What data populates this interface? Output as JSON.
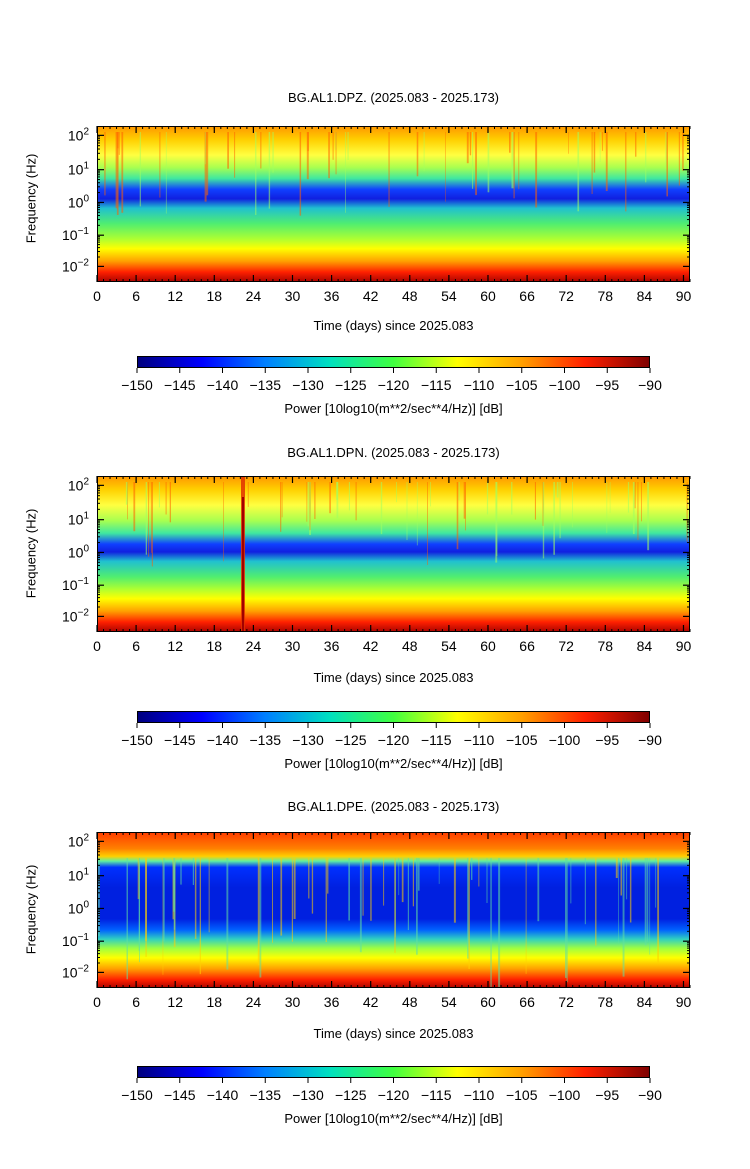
{
  "chart_data": [
    {
      "type": "heatmap",
      "title": "BG.AL1.DPZ. (2025.083 - 2025.173)",
      "xlabel": "Time (days) since 2025.083",
      "ylabel": "Frequency (Hz)",
      "x_ticks": [
        "0",
        "6",
        "12",
        "18",
        "24",
        "30",
        "36",
        "42",
        "48",
        "54",
        "60",
        "66",
        "72",
        "78",
        "84",
        "90"
      ],
      "y_ticks": [
        {
          "base": "10",
          "exp": "2"
        },
        {
          "base": "10",
          "exp": "1"
        },
        {
          "base": "10",
          "exp": "0"
        },
        {
          "base": "10",
          "exp": "−1"
        },
        {
          "base": "10",
          "exp": "−2"
        }
      ],
      "xlim": [
        0,
        91
      ],
      "y_scale": "log",
      "colorbar_label": "Power [10log10(m**2/sec**4/Hz)] [dB]",
      "colorbar_ticks": [
        "−150",
        "−145",
        "−140",
        "−135",
        "−130",
        "−125",
        "−120",
        "−115",
        "−110",
        "−105",
        "−100",
        "−95",
        "−90"
      ],
      "clim": [
        -150,
        -90
      ]
    },
    {
      "type": "heatmap",
      "title": "BG.AL1.DPN. (2025.083 - 2025.173)",
      "xlabel": "Time (days) since 2025.083",
      "ylabel": "Frequency (Hz)",
      "x_ticks": [
        "0",
        "6",
        "12",
        "18",
        "24",
        "30",
        "36",
        "42",
        "48",
        "54",
        "60",
        "66",
        "72",
        "78",
        "84",
        "90"
      ],
      "y_ticks": [
        {
          "base": "10",
          "exp": "2"
        },
        {
          "base": "10",
          "exp": "1"
        },
        {
          "base": "10",
          "exp": "0"
        },
        {
          "base": "10",
          "exp": "−1"
        },
        {
          "base": "10",
          "exp": "−2"
        }
      ],
      "xlim": [
        0,
        91
      ],
      "y_scale": "log",
      "colorbar_label": "Power [10log10(m**2/sec**4/Hz)] [dB]",
      "colorbar_ticks": [
        "−150",
        "−145",
        "−140",
        "−135",
        "−130",
        "−125",
        "−120",
        "−115",
        "−110",
        "−105",
        "−100",
        "−95",
        "−90"
      ],
      "clim": [
        -150,
        -90
      ]
    },
    {
      "type": "heatmap",
      "title": "BG.AL1.DPE. (2025.083 - 2025.173)",
      "xlabel": "Time (days) since 2025.083",
      "ylabel": "Frequency (Hz)",
      "x_ticks": [
        "0",
        "6",
        "12",
        "18",
        "24",
        "30",
        "36",
        "42",
        "48",
        "54",
        "60",
        "66",
        "72",
        "78",
        "84",
        "90"
      ],
      "y_ticks": [
        {
          "base": "10",
          "exp": "2"
        },
        {
          "base": "10",
          "exp": "1"
        },
        {
          "base": "10",
          "exp": "0"
        },
        {
          "base": "10",
          "exp": "−1"
        },
        {
          "base": "10",
          "exp": "−2"
        }
      ],
      "xlim": [
        0,
        91
      ],
      "y_scale": "log",
      "colorbar_label": "Power [10log10(m**2/sec**4/Hz)] [dB]",
      "colorbar_ticks": [
        "−150",
        "−145",
        "−140",
        "−135",
        "−130",
        "−125",
        "−120",
        "−115",
        "−110",
        "−105",
        "−100",
        "−95",
        "−90"
      ],
      "clim": [
        -150,
        -90
      ]
    }
  ],
  "colors": {
    "colormap": [
      "#00007f",
      "#0000ff",
      "#0080ff",
      "#00e0c0",
      "#40ff40",
      "#ffff00",
      "#ffa000",
      "#ff2000",
      "#800000"
    ]
  }
}
